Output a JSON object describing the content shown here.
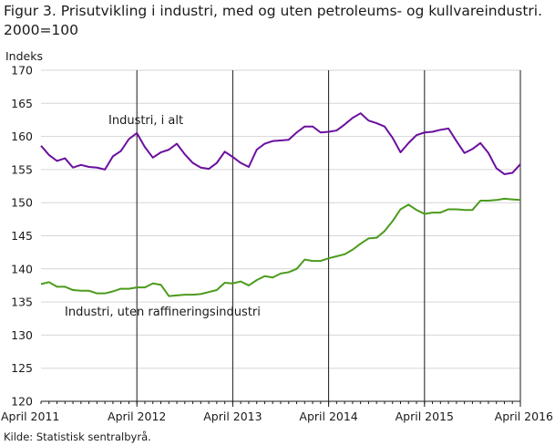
{
  "figure": {
    "title_line1": "Figur 3. Prisutvikling i industri, med og uten petroleums- og kullvareindustri.",
    "title_line2": "2000=100",
    "source": "Kilde: Statistisk sentralbyrå."
  },
  "chart_data": {
    "type": "line",
    "title": "Figur 3. Prisutvikling i industri, med og uten petroleums- og kullvareindustri. 2000=100",
    "ylabel": "Indeks",
    "xlabel": "",
    "ylim": [
      120,
      170
    ],
    "yticks": [
      120,
      125,
      130,
      135,
      140,
      145,
      150,
      155,
      160,
      165,
      170
    ],
    "xticks": [
      "April 2011",
      "April 2012",
      "April 2013",
      "April 2014",
      "April 2015",
      "April 2016"
    ],
    "grid": "horizontal",
    "x": [
      "2011-04",
      "2011-05",
      "2011-06",
      "2011-07",
      "2011-08",
      "2011-09",
      "2011-10",
      "2011-11",
      "2011-12",
      "2012-01",
      "2012-02",
      "2012-03",
      "2012-04",
      "2012-05",
      "2012-06",
      "2012-07",
      "2012-08",
      "2012-09",
      "2012-10",
      "2012-11",
      "2012-12",
      "2013-01",
      "2013-02",
      "2013-03",
      "2013-04",
      "2013-05",
      "2013-06",
      "2013-07",
      "2013-08",
      "2013-09",
      "2013-10",
      "2013-11",
      "2013-12",
      "2014-01",
      "2014-02",
      "2014-03",
      "2014-04",
      "2014-05",
      "2014-06",
      "2014-07",
      "2014-08",
      "2014-09",
      "2014-10",
      "2014-11",
      "2014-12",
      "2015-01",
      "2015-02",
      "2015-03",
      "2015-04",
      "2015-05",
      "2015-06",
      "2015-07",
      "2015-08",
      "2015-09",
      "2015-10",
      "2015-11",
      "2015-12",
      "2016-01",
      "2016-02",
      "2016-03",
      "2016-04"
    ],
    "series": [
      {
        "name": "Industri, i alt",
        "color": "#6b0f9e",
        "values": [
          158.6,
          157.2,
          156.3,
          156.7,
          155.3,
          155.7,
          155.4,
          155.3,
          155.0,
          157.0,
          157.8,
          159.6,
          160.5,
          158.4,
          156.8,
          157.6,
          158.0,
          158.9,
          157.3,
          156.0,
          155.3,
          155.1,
          156.0,
          157.7,
          156.9,
          156.0,
          155.4,
          158.0,
          158.9,
          159.3,
          159.4,
          159.5,
          160.6,
          161.5,
          161.5,
          160.6,
          160.7,
          160.9,
          161.8,
          162.8,
          163.5,
          162.4,
          162.0,
          161.5,
          159.8,
          157.6,
          159.0,
          160.2,
          160.6,
          160.7,
          161.0,
          161.2,
          159.3,
          157.5,
          158.1,
          159.0,
          157.5,
          155.2,
          154.3,
          154.5,
          155.8
        ]
      },
      {
        "name": "Industri, uten raffineringsindustri",
        "color": "#4b9b1d",
        "values": [
          137.7,
          138.0,
          137.3,
          137.3,
          136.8,
          136.7,
          136.7,
          136.3,
          136.3,
          136.6,
          137.0,
          137.0,
          137.2,
          137.2,
          137.8,
          137.6,
          135.9,
          136.0,
          136.1,
          136.1,
          136.2,
          136.5,
          136.8,
          137.9,
          137.8,
          138.1,
          137.5,
          138.3,
          138.9,
          138.7,
          139.3,
          139.5,
          140.0,
          141.4,
          141.2,
          141.2,
          141.6,
          141.9,
          142.2,
          142.9,
          143.8,
          144.6,
          144.7,
          145.7,
          147.2,
          149.0,
          149.7,
          148.9,
          148.3,
          148.5,
          148.5,
          149.0,
          149.0,
          148.9,
          148.9,
          150.3,
          150.3,
          150.4,
          150.6,
          150.5,
          150.4
        ]
      }
    ],
    "annotations": [
      "Industri, i alt",
      "Industri, uten raffineringsindustri"
    ]
  }
}
